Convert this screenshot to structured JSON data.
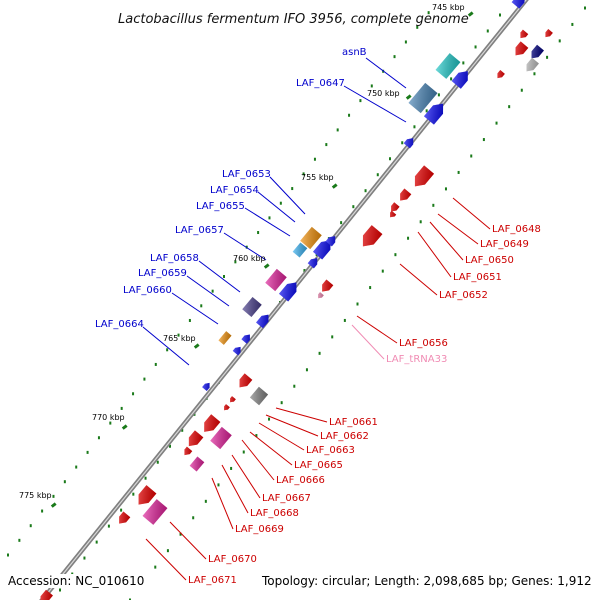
{
  "title": "Lactobacillus fermentum IFO 3956, complete genome",
  "footer": {
    "accession": "Accession: NC_010610",
    "topology": "Topology: circular; Length: 2,098,685 bp; Genes: 1,912"
  },
  "colors": {
    "backbone": "#808080",
    "tick": "#1a7a1a",
    "forward_label": "#0000cc",
    "reverse_label": "#cc0000",
    "trna_label": "#f08cb4"
  },
  "ticks": [
    {
      "label": "745 kbp"
    },
    {
      "label": "750 kbp"
    },
    {
      "label": "755 kbp"
    },
    {
      "label": "760 kbp"
    },
    {
      "label": "765 kbp"
    },
    {
      "label": "770 kbp"
    },
    {
      "label": "775 kbp"
    }
  ],
  "forward_labels": [
    {
      "text": "asnB"
    },
    {
      "text": "LAF_0647"
    },
    {
      "text": "LAF_0653"
    },
    {
      "text": "LAF_0654"
    },
    {
      "text": "LAF_0655"
    },
    {
      "text": "LAF_0657"
    },
    {
      "text": "LAF_0658"
    },
    {
      "text": "LAF_0659"
    },
    {
      "text": "LAF_0660"
    },
    {
      "text": "LAF_0664"
    }
  ],
  "reverse_labels": [
    {
      "text": "LAF_0648"
    },
    {
      "text": "LAF_0649"
    },
    {
      "text": "LAF_0650"
    },
    {
      "text": "LAF_0651"
    },
    {
      "text": "LAF_0652"
    },
    {
      "text": "LAF_0656"
    },
    {
      "text": "LAF_tRNA33"
    },
    {
      "text": "LAF_0661"
    },
    {
      "text": "LAF_0662"
    },
    {
      "text": "LAF_0663"
    },
    {
      "text": "LAF_0665"
    },
    {
      "text": "LAF_0666"
    },
    {
      "text": "LAF_0667"
    },
    {
      "text": "LAF_0668"
    },
    {
      "text": "LAF_0669"
    },
    {
      "text": "LAF_0670"
    },
    {
      "text": "LAF_0671"
    }
  ],
  "gene_colors": {
    "cyan": "#20c8c8",
    "steelblue": "#4682b4",
    "blue": "#0000ee",
    "orange": "#f0900a",
    "lightblue": "#38b0f0",
    "magenta": "#e0209a",
    "slate": "#483d8b",
    "red": "#ee0000",
    "gray": "#808080",
    "silver": "#c0c0c0",
    "navy": "#000080",
    "pink": "#f08cb4"
  }
}
